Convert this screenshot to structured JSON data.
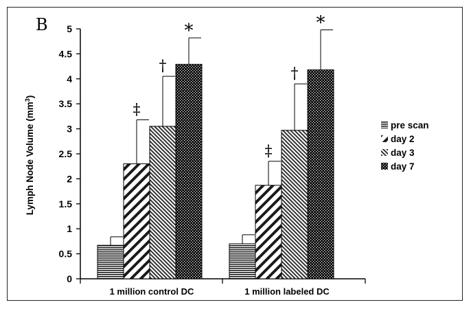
{
  "panel_label": "B",
  "chart_data": {
    "type": "bar",
    "title": "",
    "xlabel": "",
    "ylabel": "Lymph Node Volume (mm",
    "ylabel_superscript": "3",
    "ylabel_suffix": ")",
    "ylim": [
      0,
      5
    ],
    "yticks": [
      "0",
      "0.5",
      "1",
      "1.5",
      "2",
      "2.5",
      "3",
      "3.5",
      "4",
      "4.5",
      "5"
    ],
    "yticks_values": [
      0,
      0.5,
      1,
      1.5,
      2,
      2.5,
      3,
      3.5,
      4,
      4.5,
      5
    ],
    "categories": [
      "1 million control DC",
      "1 million labeled DC"
    ],
    "series": [
      {
        "name": "pre scan",
        "values": [
          0.67,
          0.7
        ],
        "errors": [
          0.17,
          0.18
        ],
        "markers": [
          "",
          ""
        ]
      },
      {
        "name": "day 2",
        "values": [
          2.3,
          1.87
        ],
        "errors": [
          0.88,
          0.48
        ],
        "markers": [
          "‡",
          "‡"
        ]
      },
      {
        "name": "day 3",
        "values": [
          3.05,
          2.97
        ],
        "errors": [
          1.0,
          0.93
        ],
        "markers": [
          "†",
          "†"
        ]
      },
      {
        "name": "day 7",
        "values": [
          4.29,
          4.18
        ],
        "errors": [
          0.53,
          0.8
        ],
        "markers": [
          "*",
          "*"
        ]
      }
    ],
    "legend_position": "right",
    "grid": false
  },
  "colors": {
    "bar_stroke": "#000000",
    "pattern_ink": "#1a1a1a",
    "axis": "#000000"
  }
}
